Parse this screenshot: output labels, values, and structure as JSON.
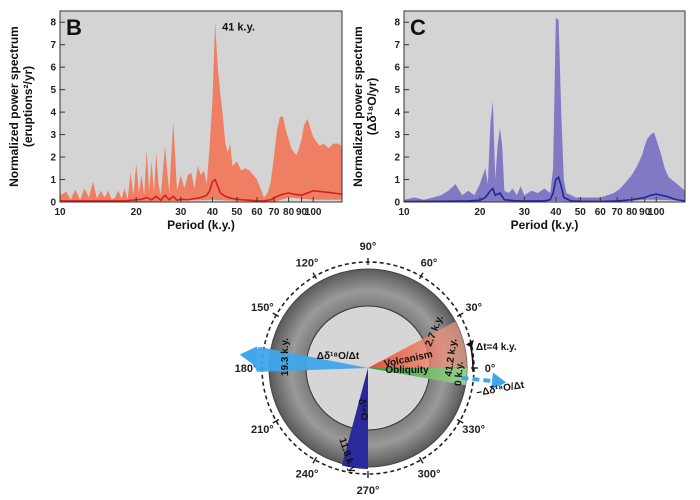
{
  "chart_data": [
    {
      "type": "area",
      "panel": "B",
      "xlabel": "Period (k.y.)",
      "ylabel_line1": "Normalized power spectrum",
      "ylabel_line2": "(eruptions²/yr)",
      "xscale": "log",
      "xlim": [
        10,
        130
      ],
      "ylim": [
        0,
        8.5
      ],
      "xticks": [
        10,
        20,
        30,
        40,
        50,
        60,
        70,
        80,
        90,
        100
      ],
      "xtick_labels": [
        "10",
        "20",
        "30",
        "40",
        "50",
        "60",
        "70",
        "80",
        "90",
        "100"
      ],
      "yticks": [
        0,
        1,
        2,
        3,
        4,
        5,
        6,
        7,
        8
      ],
      "annotation": {
        "text": "41 k.y.",
        "x": 41,
        "y": 7.8
      },
      "fill_color": "#ee7f62",
      "line_color": "#d81e1e",
      "background": "#d4d4d4",
      "series": [
        {
          "role": "band_upper",
          "x": [
            10,
            10.6,
            11,
            11.5,
            12,
            12.5,
            13,
            13.5,
            14,
            14.5,
            15,
            15.5,
            16,
            16.5,
            17,
            17.5,
            18,
            18.5,
            19,
            19.5,
            20,
            20.5,
            21,
            21.5,
            22,
            22.5,
            23,
            23.5,
            24,
            24.5,
            25,
            26,
            27,
            28,
            29,
            30,
            31,
            32,
            33,
            34,
            35,
            36,
            37,
            38,
            39,
            40,
            41,
            42,
            43,
            44,
            45,
            46,
            47,
            48,
            50,
            52,
            54,
            56,
            58,
            60,
            62,
            64,
            66,
            68,
            70,
            72,
            74,
            76,
            78,
            80,
            82,
            84,
            86,
            88,
            90,
            92,
            95,
            98,
            100,
            103,
            106,
            110,
            115,
            120,
            125,
            130
          ],
          "y": [
            0.3,
            0.45,
            0.1,
            0.55,
            0.1,
            0.6,
            0.2,
            0.9,
            0.15,
            0.5,
            0.2,
            0.5,
            0.1,
            0.2,
            0.5,
            0.15,
            0.6,
            0.1,
            1.3,
            0.3,
            1.7,
            0.4,
            1.2,
            0.3,
            2.3,
            0.5,
            1.8,
            0.4,
            2.2,
            0.8,
            0.3,
            2.5,
            0.4,
            3.6,
            0.5,
            1.2,
            0.6,
            1.2,
            1.3,
            0.6,
            1.6,
            1.2,
            1.4,
            0.8,
            2.5,
            4.5,
            8.0,
            6.0,
            4.8,
            3.8,
            2.6,
            2.2,
            2.6,
            1.6,
            1.8,
            1.4,
            1.5,
            1.4,
            1.2,
            1.0,
            0.6,
            0.2,
            0.4,
            0.9,
            2.0,
            3.2,
            3.8,
            3.8,
            3.2,
            2.8,
            2.4,
            2.2,
            2.1,
            2.4,
            2.8,
            3.4,
            3.7,
            3.2,
            2.9,
            2.7,
            2.5,
            2.6,
            2.4,
            2.6,
            2.6,
            2.5
          ]
        },
        {
          "role": "band_lower",
          "x": [
            10,
            20,
            30,
            40,
            50,
            60,
            70,
            80,
            90,
            100,
            130
          ],
          "y": [
            0,
            0,
            0.05,
            0.1,
            0.05,
            0,
            0,
            0.2,
            0.15,
            0.1,
            0.1
          ]
        },
        {
          "role": "median",
          "x": [
            10,
            12,
            14,
            16,
            18,
            20,
            21,
            22,
            23,
            24,
            25,
            26,
            27,
            28,
            29,
            30,
            32,
            34,
            36,
            38,
            39,
            40,
            41,
            42,
            43,
            45,
            48,
            52,
            56,
            60,
            64,
            68,
            72,
            76,
            80,
            84,
            90,
            95,
            100,
            110,
            120,
            130
          ],
          "y": [
            0.05,
            0.05,
            0.05,
            0.05,
            0.05,
            0.1,
            0.12,
            0.2,
            0.1,
            0.25,
            0.08,
            0.3,
            0.1,
            0.25,
            0.08,
            0.12,
            0.1,
            0.15,
            0.2,
            0.3,
            0.5,
            0.9,
            1.0,
            0.7,
            0.4,
            0.25,
            0.15,
            0.1,
            0.08,
            0.05,
            0.05,
            0.1,
            0.25,
            0.35,
            0.4,
            0.35,
            0.3,
            0.4,
            0.5,
            0.45,
            0.4,
            0.35
          ]
        }
      ]
    },
    {
      "type": "area",
      "panel": "C",
      "xlabel": "Period (k.y.)",
      "ylabel_line1": "Normalized power spectrum",
      "ylabel_line2": "(Δδ¹⁸O/yr)",
      "xscale": "log",
      "xlim": [
        10,
        130
      ],
      "ylim": [
        0,
        8.5
      ],
      "xticks": [
        10,
        20,
        30,
        40,
        50,
        60,
        70,
        80,
        90,
        100
      ],
      "xtick_labels": [
        "10",
        "20",
        "30",
        "40",
        "50",
        "60",
        "70",
        "80",
        "90",
        "100"
      ],
      "yticks": [
        0,
        1,
        2,
        3,
        4,
        5,
        6,
        7,
        8
      ],
      "fill_color": "#8279c4",
      "line_color": "#24249a",
      "background": "#d4d4d4",
      "series": [
        {
          "role": "band_upper",
          "x": [
            10,
            11,
            12,
            13,
            14,
            15,
            16,
            17,
            18,
            19,
            20,
            21,
            21.5,
            22,
            22.5,
            23,
            23.5,
            24,
            24.5,
            25,
            26,
            27,
            28,
            29,
            30,
            32,
            34,
            36,
            38,
            39,
            40,
            41,
            42,
            43,
            44,
            46,
            48,
            50,
            53,
            56,
            60,
            64,
            68,
            72,
            76,
            80,
            84,
            88,
            90,
            92,
            95,
            98,
            100,
            104,
            108,
            112,
            118,
            124,
            130
          ],
          "y": [
            0.1,
            0.2,
            0.1,
            0.2,
            0.3,
            0.5,
            0.8,
            0.3,
            0.5,
            0.3,
            0.8,
            1.5,
            0.8,
            3.5,
            4.5,
            1.0,
            2.5,
            3.3,
            2.5,
            0.5,
            0.4,
            0.6,
            0.3,
            0.7,
            0.3,
            0.5,
            0.4,
            0.6,
            0.4,
            1.5,
            8.2,
            8.1,
            4.0,
            1.0,
            0.4,
            0.3,
            0.2,
            0.2,
            0.2,
            0.2,
            0.2,
            0.3,
            0.4,
            0.6,
            0.9,
            1.2,
            1.6,
            2.1,
            2.5,
            2.8,
            3.0,
            3.1,
            2.8,
            2.2,
            1.5,
            1.1,
            0.9,
            0.7,
            0.5
          ]
        },
        {
          "role": "band_lower",
          "x": [
            10,
            20,
            30,
            40,
            50,
            60,
            70,
            80,
            90,
            100,
            130
          ],
          "y": [
            0,
            0,
            0,
            0.05,
            0,
            0,
            0,
            0.05,
            0.1,
            0.1,
            0.05
          ]
        },
        {
          "role": "median",
          "x": [
            10,
            14,
            18,
            20,
            21,
            22,
            22.5,
            23,
            24,
            25,
            28,
            32,
            36,
            38,
            39,
            40,
            41,
            42,
            43,
            46,
            50,
            60,
            70,
            80,
            90,
            95,
            100,
            110,
            120,
            130
          ],
          "y": [
            0.02,
            0.03,
            0.05,
            0.08,
            0.2,
            0.5,
            0.6,
            0.3,
            0.4,
            0.1,
            0.05,
            0.05,
            0.05,
            0.1,
            0.4,
            1.0,
            1.1,
            0.7,
            0.2,
            0.05,
            0.03,
            0.02,
            0.05,
            0.1,
            0.2,
            0.3,
            0.35,
            0.25,
            0.1,
            0.05
          ]
        }
      ]
    },
    {
      "type": "phase-wheel",
      "angle_labels": [
        "0°",
        "30°",
        "60°",
        "90°",
        "120°",
        "150°",
        "180°",
        "210°",
        "240°",
        "270°",
        "300°",
        "330°"
      ],
      "angles_deg": [
        0,
        30,
        60,
        90,
        120,
        150,
        180,
        210,
        240,
        270,
        300,
        330
      ],
      "wedges": [
        {
          "label": "Volcanism",
          "direction_deg": 12,
          "spread_deg": [
            0,
            28
          ],
          "color": "#e23a1e",
          "uncertainty_label": "2.7 k.y."
        },
        {
          "label": "Obliquity",
          "direction_deg": -5,
          "spread_deg": [
            -10,
            0
          ],
          "color": "#46a146",
          "uncertainty_label": "0 k.y."
        },
        {
          "label": "Δδ¹⁸O/Δt",
          "direction_deg": 174,
          "spread_deg": [
            169,
            182
          ],
          "color": "#3fa6ea",
          "uncertainty_label": "19.3 k.y."
        },
        {
          "label": "δ¹⁸O",
          "direction_deg": 264,
          "spread_deg": [
            255,
            270
          ],
          "color": "#2a2a9c",
          "uncertainty_label": "11.8 k.y."
        }
      ],
      "arc_labels": {
        "volcanism_to_obliquity": "41.2 k.y.",
        "delta_t": "Δt=4 k.y."
      },
      "arrows": [
        {
          "label": "−Δδ¹⁸O/Δt",
          "direction_deg": -6
        }
      ]
    }
  ]
}
